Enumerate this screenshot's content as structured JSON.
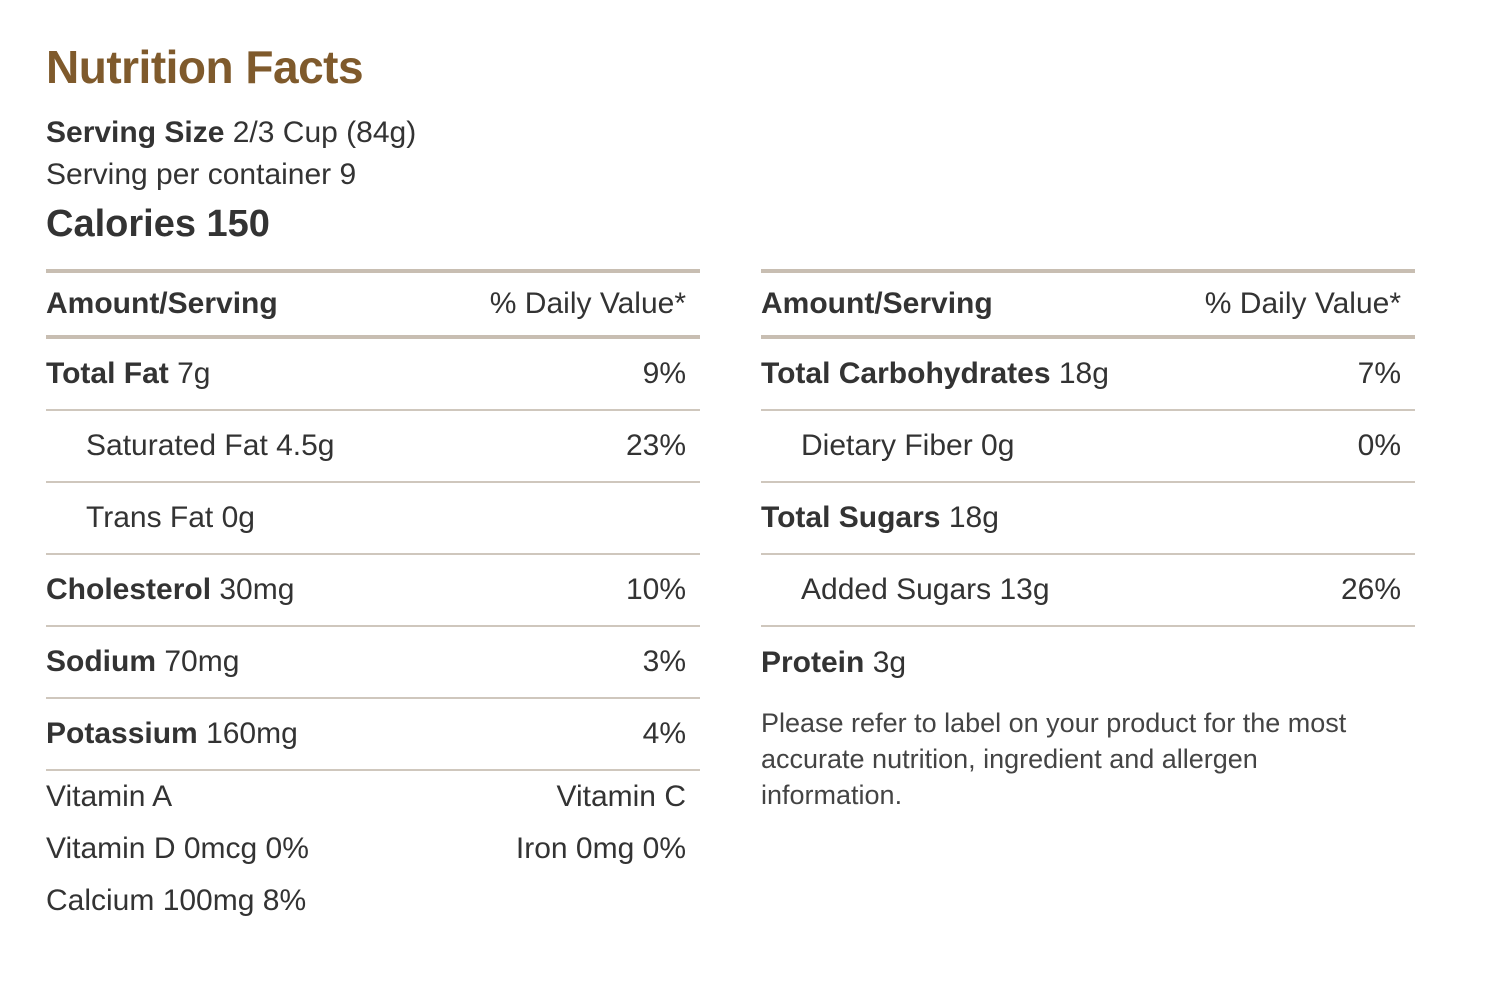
{
  "title": "Nutrition Facts",
  "serving": {
    "size_label": "Serving Size",
    "size_value": "2/3 Cup (84g)",
    "per_container": "Serving per container 9",
    "calories": "Calories 150"
  },
  "left": {
    "header": {
      "amount": "Amount/Serving",
      "dv": "% Daily Value*"
    },
    "rows": [
      {
        "label": "Total Fat",
        "amount": "7g",
        "dv": "9%"
      },
      {
        "label": "Saturated Fat 4.5g",
        "amount": "",
        "dv": "23%"
      },
      {
        "label": "Trans Fat 0g",
        "amount": "",
        "dv": ""
      },
      {
        "label": "Cholesterol",
        "amount": "30mg",
        "dv": "10%"
      },
      {
        "label": "Sodium",
        "amount": "70mg",
        "dv": "3%"
      },
      {
        "label": "Potassium",
        "amount": "160mg",
        "dv": "4%"
      }
    ],
    "vitamins": [
      {
        "left": "Vitamin A",
        "right": "Vitamin C"
      },
      {
        "left": "Vitamin D 0mcg 0%",
        "right": "Iron 0mg 0%"
      },
      {
        "left": "Calcium 100mg 8%",
        "right": ""
      }
    ]
  },
  "right": {
    "header": {
      "amount": "Amount/Serving",
      "dv": "% Daily Value*"
    },
    "rows": [
      {
        "label": "Total Carbohydrates",
        "amount": "18g",
        "dv": "7%"
      },
      {
        "label": "Dietary Fiber 0g",
        "amount": "",
        "dv": "0%"
      },
      {
        "label": "Total Sugars",
        "amount": "18g",
        "dv": ""
      },
      {
        "label": "Added Sugars 13g",
        "amount": "",
        "dv": "26%"
      },
      {
        "label": "Protein",
        "amount": "3g",
        "dv": ""
      }
    ],
    "disclaimer": "Please refer to label on your product for the most accurate nutrition, ingredient and allergen information."
  },
  "colors": {
    "title": "#7f5a2c",
    "text": "#333333",
    "rule": "#c8beb2"
  }
}
